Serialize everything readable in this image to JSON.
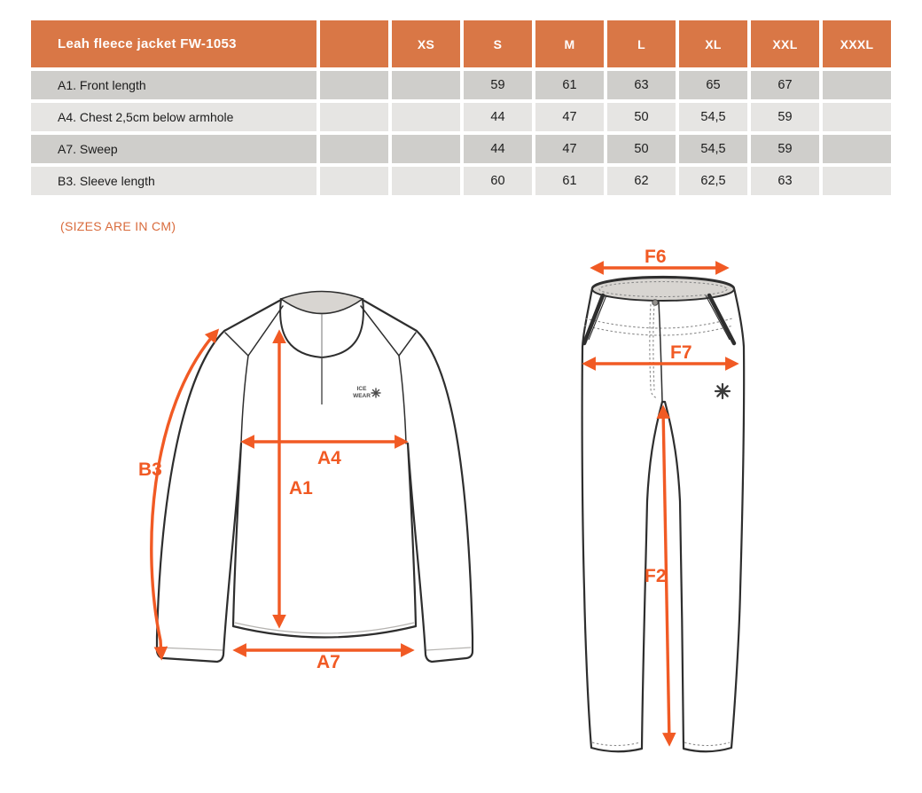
{
  "colors": {
    "header_orange": "#D97746",
    "arrow_orange": "#F15A24",
    "note_orange": "#D96B3C",
    "row_dark_gray": "#CFCECB",
    "row_light_gray": "#E6E5E3",
    "collar_gray": "#D8D5D1"
  },
  "table": {
    "title": "Leah fleece jacket FW-1053",
    "size_columns": [
      "",
      "XS",
      "S",
      "M",
      "L",
      "XL",
      "XXL",
      "XXXL"
    ],
    "rows": [
      {
        "label": "A1. Front length",
        "values": [
          "",
          "",
          "59",
          "61",
          "63",
          "65",
          "67",
          ""
        ]
      },
      {
        "label": "A4. Chest 2,5cm below armhole",
        "values": [
          "",
          "",
          "44",
          "47",
          "50",
          "54,5",
          "59",
          ""
        ]
      },
      {
        "label": "A7. Sweep",
        "values": [
          "",
          "",
          "44",
          "47",
          "50",
          "54,5",
          "59",
          ""
        ]
      },
      {
        "label": "B3. Sleeve length",
        "values": [
          "",
          "",
          "60",
          "61",
          "62",
          "62,5",
          "63",
          ""
        ]
      }
    ]
  },
  "note": "(SIZES ARE IN CM)",
  "jacket": {
    "labels": {
      "b3": "B3",
      "a1": "A1",
      "a4": "A4",
      "a7": "A7"
    },
    "logo": {
      "line1": "ICE",
      "line2": "WEAR"
    }
  },
  "pants": {
    "labels": {
      "f6": "F6",
      "f7": "F7",
      "f2": "F2"
    }
  }
}
